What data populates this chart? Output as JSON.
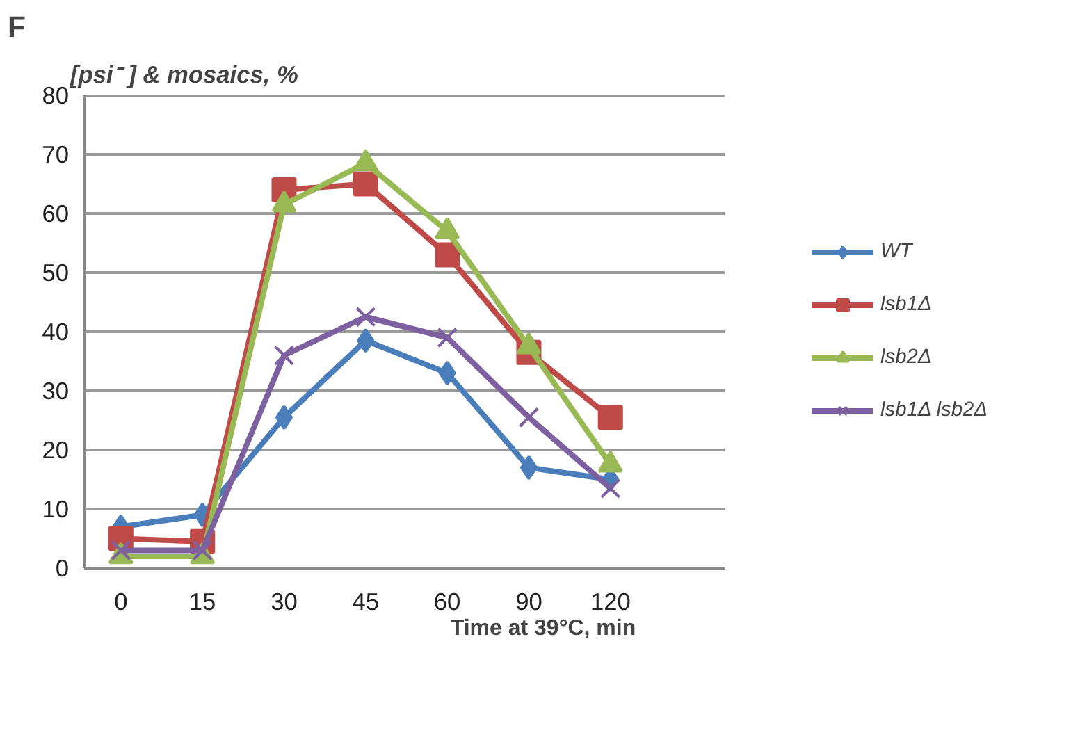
{
  "chart_data": {
    "type": "line",
    "ylabel": "[psi⁻ ] & mosaics, %",
    "xlabel": "Time at 39°C, min",
    "annotations": [
      "F"
    ],
    "categories": [
      "0",
      "15",
      "30",
      "45",
      "60",
      "90",
      "120"
    ],
    "ylim": [
      0,
      80
    ],
    "yticks": [
      0,
      10,
      20,
      30,
      40,
      50,
      60,
      70,
      80
    ],
    "grid": "y",
    "legend": "right",
    "series": [
      {
        "name": "WT",
        "color": "#4a7ebb",
        "marker": "diamond",
        "values": [
          7,
          9,
          25.5,
          38.5,
          33,
          17,
          15
        ]
      },
      {
        "name": "lsb1Δ",
        "color": "#be4b48",
        "marker": "square",
        "values": [
          5,
          4.5,
          64,
          65,
          53,
          36.5,
          25.5
        ]
      },
      {
        "name": "lsb2Δ",
        "color": "#98b954",
        "marker": "triangle",
        "values": [
          2,
          2,
          61.5,
          68.5,
          57,
          37.5,
          17.5
        ]
      },
      {
        "name": "lsb1Δ lsb2Δ",
        "color": "#7d60a0",
        "marker": "cross",
        "values": [
          3,
          3,
          36,
          42.5,
          39,
          25.5,
          13.5
        ]
      }
    ]
  }
}
